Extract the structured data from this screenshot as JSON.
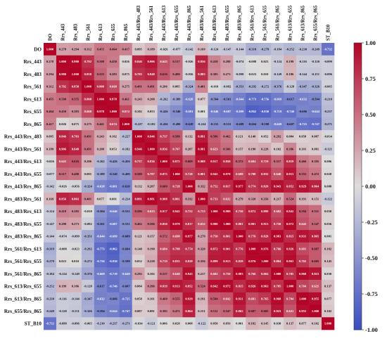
{
  "chart_data": {
    "type": "heatmap",
    "title": "",
    "xlabel": "",
    "ylabel": "",
    "labels": [
      "DO",
      "Rrs_443",
      "Rrs_483",
      "Rrs_561",
      "Rrs_613",
      "Rrs_655",
      "Rrs_865",
      "Rrs_443/Rrs_483",
      "Rrs_443/Rrs_561",
      "Rrs_443/Rrs_613",
      "Rrs_443/Rrs_655",
      "Rrs_443/Rrs_865",
      "Rrs_483/Rrs_561",
      "Rrs_483/Rrs_613",
      "Rrs_483/Rrs_655",
      "Rrs_483/Rrs_865",
      "Rrs_561/Rrs_613",
      "Rrs_561/Rrs_655",
      "Rrs_561/Rrs_865",
      "Rrs_613/Rrs_655",
      "Rrs_613/Rrs_865",
      "Rrs_655/Rrs_865",
      "ST_B10"
    ],
    "matrix": [
      [
        1.0,
        0.278,
        0.294,
        0.312,
        0.455,
        0.464,
        0.417,
        0.095,
        0.189,
        -0.026,
        -0.077,
        -0.142,
        0.169,
        -0.124,
        -0.147,
        -0.144,
        -0.319,
        -0.279,
        -0.184,
        -0.252,
        -0.23,
        -0.249,
        -0.732
      ],
      [
        0.278,
        1.0,
        0.98,
        0.792,
        0.508,
        0.45,
        0.026,
        0.846,
        0.906,
        0.643,
        0.517,
        -0.026,
        0.856,
        0.418,
        0.298,
        -0.074,
        -0.008,
        0.023,
        -0.124,
        0.199,
        -0.116,
        -0.12,
        -0.099
      ],
      [
        0.294,
        0.98,
        1.0,
        0.858,
        0.555,
        0.383,
        0.075,
        0.783,
        0.848,
        0.616,
        0.48,
        -0.056,
        0.803,
        0.385,
        0.273,
        -0.099,
        -0.023,
        0.01,
        -0.149,
        0.186,
        -0.144,
        -0.151,
        -0.096
      ],
      [
        0.312,
        0.792,
        0.858,
        1.0,
        0.808,
        0.668,
        0.275,
        0.491,
        0.491,
        0.206,
        0.085,
        -0.324,
        0.401,
        -0.01,
        -0.092,
        -0.351,
        -0.292,
        -0.272,
        -0.376,
        -0.128,
        -0.347,
        -0.326,
        -0.065
      ],
      [
        0.455,
        0.508,
        0.555,
        0.808,
        1.0,
        0.978,
        0.461,
        0.243,
        0.208,
        -0.262,
        -0.389,
        -0.628,
        0.077,
        -0.504,
        -0.561,
        -0.644,
        -0.773,
        -0.756,
        -0.669,
        -0.617,
        -0.632,
        -0.594,
        -0.21
      ],
      [
        0.464,
        0.45,
        0.383,
        0.668,
        0.978,
        1.0,
        0.674,
        0.102,
        0.053,
        -0.426,
        -0.54,
        -0.691,
        0.001,
        -0.646,
        -0.687,
        -0.699,
        -0.862,
        -0.83,
        -0.719,
        -0.746,
        -0.606,
        -0.644,
        -0.237
      ],
      [
        0.417,
        0.026,
        0.075,
        0.275,
        0.461,
        0.674,
        1.0,
        -0.227,
        -0.182,
        -0.456,
        -0.49,
        -0.62,
        -0.224,
        -0.531,
        -0.531,
        -0.609,
        -0.604,
        -0.598,
        -0.649,
        -0.607,
        -0.725,
        -0.747,
        -0.271
      ],
      [
        0.095,
        0.846,
        0.783,
        0.491,
        0.243,
        0.102,
        -0.227,
        1.0,
        0.946,
        0.737,
        0.589,
        0.132,
        0.891,
        0.586,
        0.462,
        0.121,
        0.14,
        0.052,
        0.292,
        0.084,
        0.058,
        0.087,
        -0.034
      ],
      [
        0.189,
        0.906,
        0.848,
        0.491,
        0.208,
        0.053,
        -0.182,
        0.946,
        1.0,
        0.836,
        0.707,
        0.207,
        0.981,
        0.623,
        0.506,
        0.157,
        0.19,
        0.228,
        0.102,
        0.396,
        0.101,
        0.081,
        -0.121
      ],
      [
        -0.026,
        0.643,
        0.616,
        0.206,
        -0.262,
        -0.426,
        -0.456,
        0.737,
        0.836,
        1.0,
        0.875,
        0.609,
        0.908,
        0.917,
        0.85,
        0.572,
        0.684,
        0.719,
        0.517,
        0.819,
        0.46,
        0.395,
        0.006
      ],
      [
        -0.077,
        0.517,
        0.48,
        0.085,
        -0.389,
        -0.54,
        -0.49,
        0.589,
        0.707,
        0.875,
        1.0,
        0.728,
        0.801,
        0.945,
        0.978,
        0.698,
        0.788,
        0.835,
        0.64,
        0.913,
        0.555,
        0.472,
        0.028
      ],
      [
        -0.142,
        -0.026,
        -0.056,
        -0.324,
        -0.628,
        -0.691,
        -0.62,
        0.132,
        0.207,
        0.609,
        0.728,
        1.0,
        0.332,
        0.752,
        0.817,
        0.977,
        0.774,
        0.828,
        0.943,
        0.852,
        0.929,
        0.864,
        0.008
      ],
      [
        0.169,
        0.856,
        0.803,
        0.401,
        0.077,
        0.001,
        -0.224,
        0.891,
        0.981,
        0.908,
        0.801,
        0.332,
        1.0,
        0.733,
        0.632,
        0.279,
        0.32,
        0.356,
        0.217,
        0.524,
        0.191,
        0.151,
        -0.122
      ],
      [
        -0.124,
        0.418,
        0.385,
        -0.01,
        -0.504,
        -0.646,
        -0.531,
        0.586,
        0.623,
        0.917,
        0.945,
        0.752,
        0.733,
        1.0,
        0.98,
        0.75,
        0.872,
        0.899,
        0.682,
        0.942,
        0.594,
        0.511,
        0.05
      ],
      [
        -0.147,
        0.298,
        0.273,
        -0.092,
        -0.561,
        -0.687,
        -0.531,
        0.462,
        0.506,
        0.85,
        0.978,
        0.817,
        0.632,
        0.98,
        1.0,
        0.801,
        0.901,
        0.913,
        0.75,
        0.972,
        0.642,
        0.547,
        0.056
      ],
      [
        -0.144,
        -0.074,
        -0.099,
        -0.351,
        -0.644,
        -0.699,
        -0.609,
        0.121,
        0.157,
        0.572,
        0.698,
        0.977,
        0.279,
        0.75,
        0.801,
        1.0,
        0.776,
        0.828,
        0.983,
        0.815,
        0.931,
        0.865,
        0.001
      ],
      [
        -0.319,
        -0.008,
        -0.023,
        -0.292,
        -0.773,
        -0.862,
        -0.604,
        0.14,
        0.19,
        0.684,
        0.788,
        0.774,
        0.32,
        0.872,
        0.901,
        0.776,
        1.0,
        0.976,
        0.766,
        0.926,
        0.681,
        0.607,
        0.182
      ],
      [
        -0.279,
        0.023,
        0.01,
        -0.272,
        -0.756,
        -0.83,
        -0.598,
        0.052,
        0.228,
        0.719,
        0.835,
        0.828,
        0.356,
        0.899,
        0.913,
        0.828,
        0.976,
        1.0,
        0.804,
        0.963,
        0.765,
        0.605,
        0.145
      ],
      [
        -0.184,
        -0.124,
        -0.149,
        -0.376,
        -0.669,
        -0.719,
        -0.649,
        0.292,
        0.102,
        0.517,
        0.64,
        0.943,
        0.217,
        0.682,
        0.75,
        0.983,
        0.766,
        0.804,
        1.0,
        0.785,
        0.968,
        0.923,
        0.03
      ],
      [
        -0.252,
        0.199,
        0.186,
        -0.128,
        -0.617,
        -0.746,
        -0.607,
        0.084,
        0.396,
        0.819,
        0.913,
        0.852,
        0.524,
        0.942,
        0.972,
        0.815,
        0.926,
        0.963,
        0.785,
        1.0,
        0.704,
        0.621,
        0.137
      ],
      [
        -0.23,
        -0.116,
        -0.144,
        -0.347,
        -0.632,
        -0.606,
        -0.725,
        0.058,
        0.101,
        0.46,
        0.555,
        0.929,
        0.191,
        0.594,
        0.642,
        0.931,
        0.681,
        0.765,
        0.968,
        0.704,
        1.0,
        0.955,
        0.077
      ],
      [
        -0.249,
        -0.12,
        -0.151,
        -0.326,
        -0.594,
        -0.644,
        -0.747,
        0.087,
        0.081,
        0.395,
        0.472,
        0.864,
        0.151,
        0.511,
        0.547,
        0.865,
        0.607,
        0.605,
        0.923,
        0.621,
        0.955,
        1.0,
        0.102
      ],
      [
        -0.732,
        -0.099,
        -0.096,
        -0.065,
        -0.21,
        -0.237,
        -0.271,
        -0.034,
        -0.121,
        0.006,
        0.028,
        0.008,
        -0.122,
        0.05,
        0.056,
        0.001,
        0.182,
        0.145,
        0.03,
        0.137,
        0.077,
        0.102,
        1.0
      ]
    ],
    "value_format": "3 decimals, leading zero dropped for 1.000 on the diagonal",
    "colormap": "coolwarm",
    "colors": {
      "neg": "#3a4cc0",
      "mid": "#dddcdc",
      "pos": "#b30326"
    },
    "value_range": [
      -1,
      1
    ],
    "colorbar": {
      "position": "right",
      "ticks": [
        1.0,
        0.75,
        0.5,
        0.25,
        0.0,
        -0.25,
        -0.5,
        -0.75,
        -1.0
      ],
      "tick_labels": [
        "1.00",
        "0.75",
        "0.50",
        "0.25",
        "0.00",
        "-0.25",
        "-0.50",
        "-0.75",
        "-1.00"
      ]
    },
    "grid": false
  }
}
